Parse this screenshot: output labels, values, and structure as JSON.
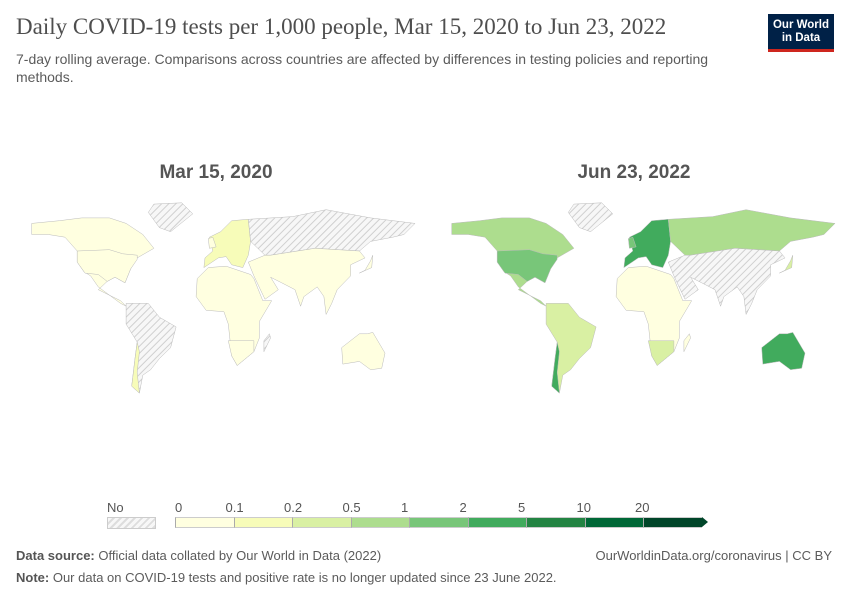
{
  "header": {
    "title": "Daily COVID-19 tests per 1,000 people, Mar 15, 2020 to Jun 23, 2022",
    "subtitle": "7-day rolling average. Comparisons across countries are affected by differences in testing policies and reporting methods.",
    "logo": "Our World in Data"
  },
  "maps": [
    {
      "date": "Mar 15, 2020"
    },
    {
      "date": "Jun 23, 2022"
    }
  ],
  "legend": {
    "no_data_label": "No data",
    "bins": [
      "0",
      "0.1",
      "0.2",
      "0.5",
      "1",
      "2",
      "5",
      "10",
      "20"
    ],
    "colors": [
      "#ffffe0",
      "#f7fcb9",
      "#d9f0a3",
      "#addd8e",
      "#78c679",
      "#41ab5d",
      "#238443",
      "#006837",
      "#004529"
    ],
    "no_data_color": "#e4e4e4"
  },
  "footer": {
    "source_label": "Data source:",
    "source": "Official data collated by Our World in Data (2022)",
    "url": "OurWorldinData.org/coronavirus | CC BY",
    "note_label": "Note:",
    "note": "Our data on COVID-19 tests and positive rate is no longer updated since 23 June 2022."
  }
}
